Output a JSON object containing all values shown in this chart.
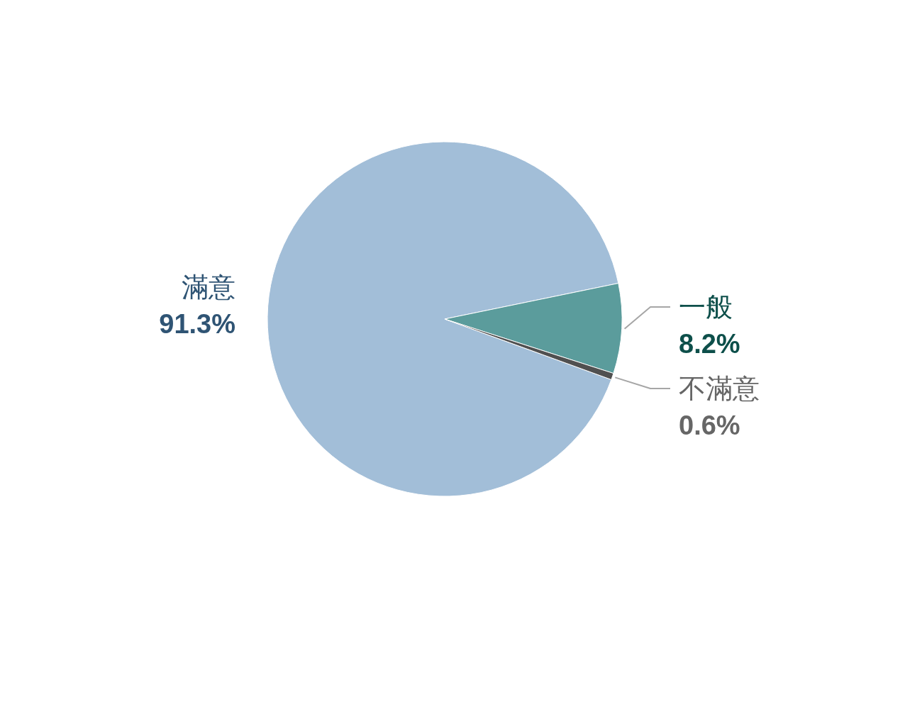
{
  "chart_data": {
    "type": "pie",
    "categories": [
      "滿意",
      "一般",
      "不滿意"
    ],
    "values": [
      91.3,
      8.2,
      0.6
    ],
    "colors": [
      "#a2bed8",
      "#5b9c9c",
      "#505050"
    ],
    "value_labels": [
      "91.3%",
      "8.2%",
      "0.6%"
    ]
  }
}
